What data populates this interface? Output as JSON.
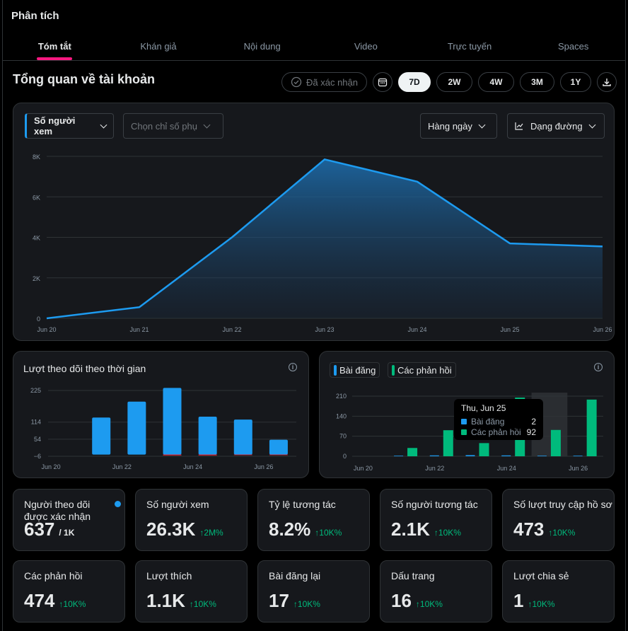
{
  "app_title": "Phân tích",
  "tabs": [
    "Tóm tắt",
    "Khán giả",
    "Nội dung",
    "Video",
    "Trực tuyến",
    "Spaces"
  ],
  "section_title": "Tổng quan về tài khoản",
  "controls": {
    "verified": "Đã xác nhận",
    "ranges": [
      "7D",
      "2W",
      "4W",
      "3M",
      "1Y"
    ],
    "active_range": "7D"
  },
  "main_chart": {
    "metric": "Số người xem",
    "secondary": "Chọn chỉ số phụ",
    "interval": "Hàng ngày",
    "chart_type": "Dạng đường"
  },
  "followers_card": {
    "title": "Lượt theo dõi theo thời gian"
  },
  "posts_card": {
    "legend": [
      "Bài đăng",
      "Các phản hồi"
    ],
    "tooltip": {
      "date": "Thu, Jun 25",
      "posts_label": "Bài đăng",
      "posts_value": "2",
      "replies_label": "Các phản hồi",
      "replies_value": "92"
    }
  },
  "colors": {
    "blue": "#1d9bf0",
    "green": "#00ba7c",
    "red": "#f4212e",
    "accent": "#f91880"
  },
  "stats": [
    {
      "label": "Người theo dõi được xác nhận",
      "value": "637",
      "sub": "/ 1K",
      "trend": ""
    },
    {
      "label": "Số người xem",
      "value": "26.3K",
      "sub": "",
      "trend": "↑2M%"
    },
    {
      "label": "Tỷ lệ tương tác",
      "value": "8.2%",
      "sub": "",
      "trend": "↑10K%"
    },
    {
      "label": "Số người tương tác",
      "value": "2.1K",
      "sub": "",
      "trend": "↑10K%"
    },
    {
      "label": "Số lượt truy cập hồ sơ",
      "value": "473",
      "sub": "",
      "trend": "↑10K%"
    },
    {
      "label": "Các phản hồi",
      "value": "474",
      "sub": "",
      "trend": "↑10K%"
    },
    {
      "label": "Lượt thích",
      "value": "1.1K",
      "sub": "",
      "trend": "↑10K%"
    },
    {
      "label": "Bài đăng lại",
      "value": "17",
      "sub": "",
      "trend": "↑10K%"
    },
    {
      "label": "Dấu trang",
      "value": "16",
      "sub": "",
      "trend": "↑10K%"
    },
    {
      "label": "Lượt chia sẻ",
      "value": "1",
      "sub": "",
      "trend": "↑10K%"
    }
  ],
  "chart_data": [
    {
      "type": "area",
      "x": [
        "Jun 20",
        "Jun 21",
        "Jun 22",
        "Jun 23",
        "Jun 24",
        "Jun 25",
        "Jun 26"
      ],
      "y_ticks": [
        "0",
        "2K",
        "4K",
        "6K",
        "8K"
      ],
      "ylim": [
        0,
        8000
      ],
      "series": [
        {
          "values": [
            0,
            550,
            4000,
            7850,
            6750,
            3700,
            3550
          ]
        }
      ]
    },
    {
      "type": "bar",
      "x": [
        "Jun 20",
        "Jun 21",
        "Jun 22",
        "Jun 23",
        "Jun 24",
        "Jun 25",
        "Jun 26"
      ],
      "x_ticks": [
        "Jun 20",
        "Jun 22",
        "Jun 24",
        "Jun 26"
      ],
      "y_ticks": [
        "−6",
        "54",
        "114",
        "225"
      ],
      "ylim": [
        -6,
        225
      ],
      "series": [
        {
          "values": [
            0,
            130,
            186,
            234,
            133,
            123,
            52
          ],
          "color": "#1d9bf0"
        },
        {
          "values": [
            0,
            0,
            0,
            -3,
            -3,
            -2,
            -2
          ],
          "color": "#f4212e"
        }
      ]
    },
    {
      "type": "bar",
      "x": [
        "Jun 20",
        "Jun 21",
        "Jun 22",
        "Jun 23",
        "Jun 24",
        "Jun 25",
        "Jun 26"
      ],
      "x_ticks": [
        "Jun 20",
        "Jun 22",
        "Jun 24",
        "Jun 26"
      ],
      "y_ticks": [
        "0",
        "70",
        "140",
        "210"
      ],
      "ylim": [
        0,
        210
      ],
      "series": [
        {
          "name": "Bài đăng",
          "values": [
            0,
            2,
            3,
            4,
            3,
            2,
            2
          ],
          "color": "#1d9bf0"
        },
        {
          "name": "Các phản hồi",
          "values": [
            0,
            29,
            91,
            46,
            205,
            92,
            198
          ],
          "color": "#00ba7c"
        }
      ]
    }
  ]
}
